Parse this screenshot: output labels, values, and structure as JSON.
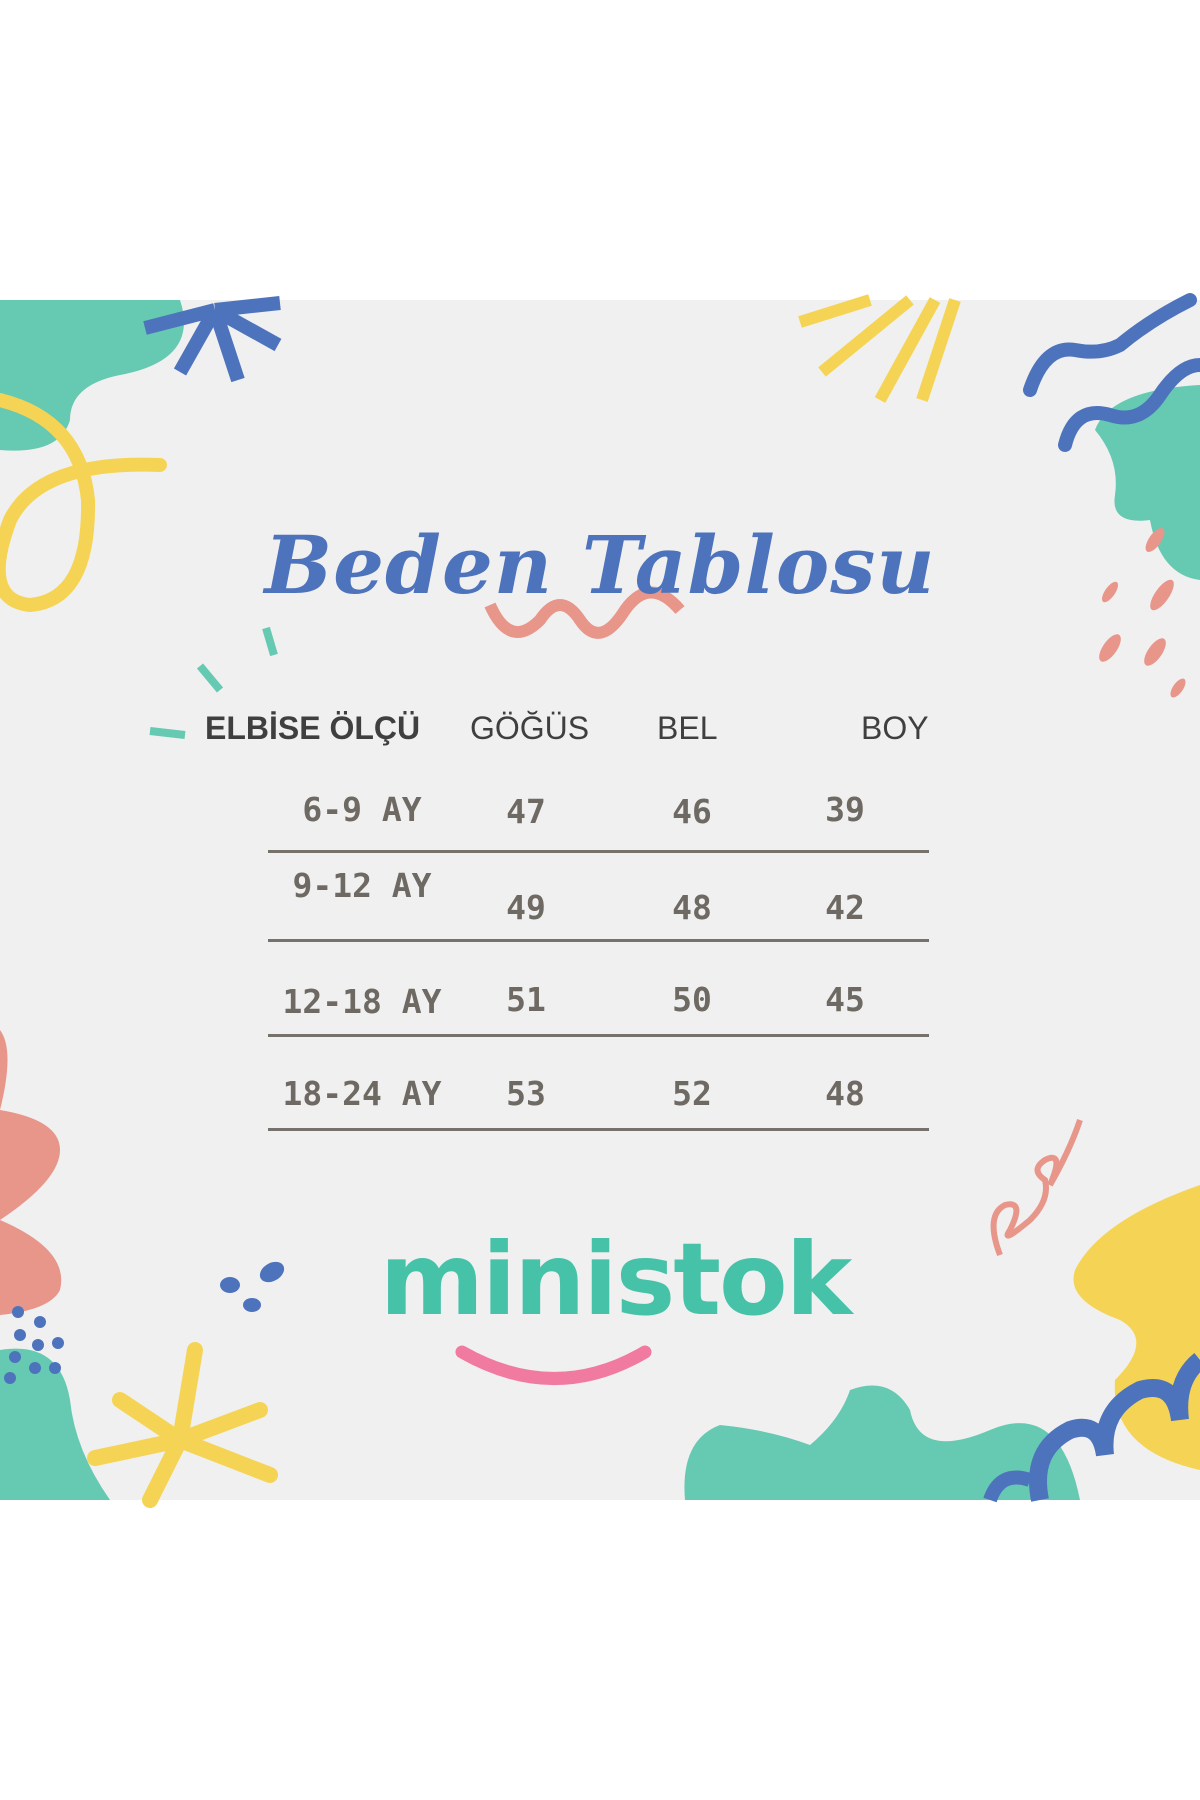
{
  "title": "Beden Tablosu",
  "table": {
    "headers": [
      "ELBİSE ÖLÇÜ",
      "GÖĞÜS",
      "BEL",
      "BOY"
    ],
    "rows": [
      {
        "size": "6-9 AY",
        "gogus": "47",
        "bel": "46",
        "boy": "39"
      },
      {
        "size": "9-12 AY",
        "gogus": "49",
        "bel": "48",
        "boy": "42"
      },
      {
        "size": "12-18 AY",
        "gogus": "51",
        "bel": "50",
        "boy": "45"
      },
      {
        "size": "18-24 AY",
        "gogus": "53",
        "bel": "52",
        "boy": "48"
      }
    ]
  },
  "brand": {
    "name": "ministok",
    "color": "#46c2a8",
    "smile_color": "#f17aa0"
  },
  "colors": {
    "background": "#f0f0f0",
    "title": "#4e73bd",
    "teal": "#66c9b2",
    "yellow": "#f5d455",
    "coral": "#e8958a",
    "blue": "#4e73bd",
    "text": "#6e6a63"
  }
}
